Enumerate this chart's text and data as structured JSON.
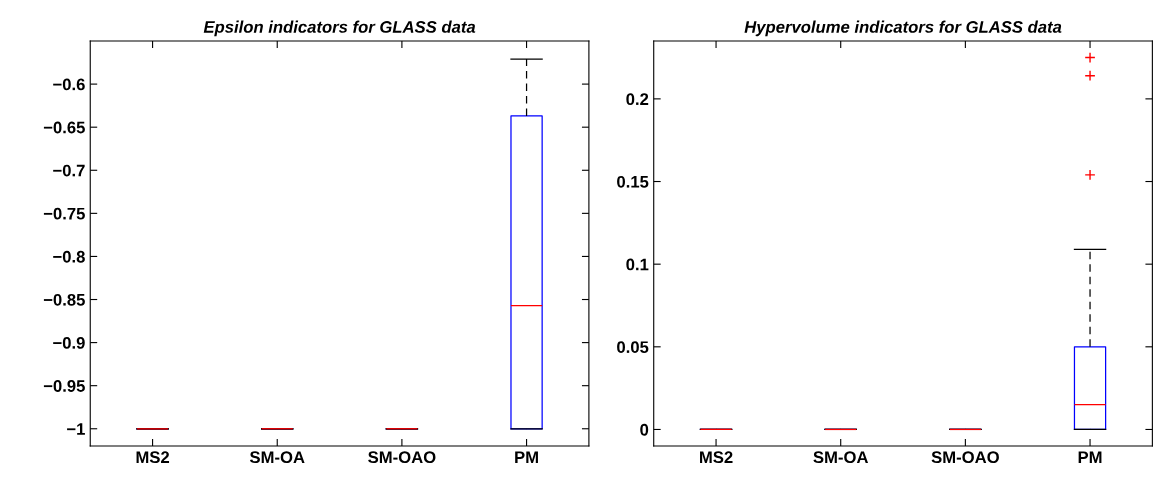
{
  "chart_data": [
    {
      "type": "box",
      "title": "Epsilon indicators for GLASS data",
      "categories": [
        "MS2",
        "SM-OA",
        "SM-OAO",
        "PM"
      ],
      "boxes": [
        {
          "low": -1,
          "q1": -1,
          "median": -1,
          "q3": -1,
          "high": -1
        },
        {
          "low": -1,
          "q1": -1,
          "median": -1,
          "q3": -1,
          "high": -1
        },
        {
          "low": -1,
          "q1": -1,
          "median": -1,
          "q3": -1,
          "high": -1
        },
        {
          "low": -1,
          "q1": -1,
          "median": -0.857,
          "q3": -0.637,
          "high": -0.571
        }
      ],
      "color": "#0000ff",
      "ylim": [
        -1.02,
        -0.55
      ],
      "yticks": [
        {
          "value": -1,
          "label": "−1"
        },
        {
          "value": -0.95,
          "label": "−0.95"
        },
        {
          "value": -0.9,
          "label": "−0.9"
        },
        {
          "value": -0.85,
          "label": "−0.85"
        },
        {
          "value": -0.8,
          "label": "−0.8"
        },
        {
          "value": -0.75,
          "label": "−0.75"
        },
        {
          "value": -0.7,
          "label": "−0.7"
        },
        {
          "value": -0.65,
          "label": "−0.65"
        },
        {
          "value": -0.6,
          "label": "−0.6"
        }
      ],
      "grid": false
    },
    {
      "type": "box",
      "title": "Hypervolume indicators for GLASS data",
      "categories": [
        "MS2",
        "SM-OA",
        "SM-OAO",
        "PM"
      ],
      "boxes": [
        {
          "low": 0,
          "q1": 0,
          "median": 0,
          "q3": 0,
          "high": 0
        },
        {
          "low": 0,
          "q1": 0,
          "median": 0,
          "q3": 0,
          "high": 0
        },
        {
          "low": 0,
          "q1": 0,
          "median": 0,
          "q3": 0,
          "high": 0
        },
        {
          "low": 0,
          "q1": 0,
          "median": 0.015,
          "q3": 0.05,
          "high": 0.109,
          "outliers": [
            0.154,
            0.214,
            0.225
          ]
        }
      ],
      "color": "#0000ff",
      "ylim": [
        -0.01,
        0.235
      ],
      "yticks": [
        0,
        0.05,
        0.1,
        0.15,
        0.2
      ],
      "grid": false
    }
  ]
}
